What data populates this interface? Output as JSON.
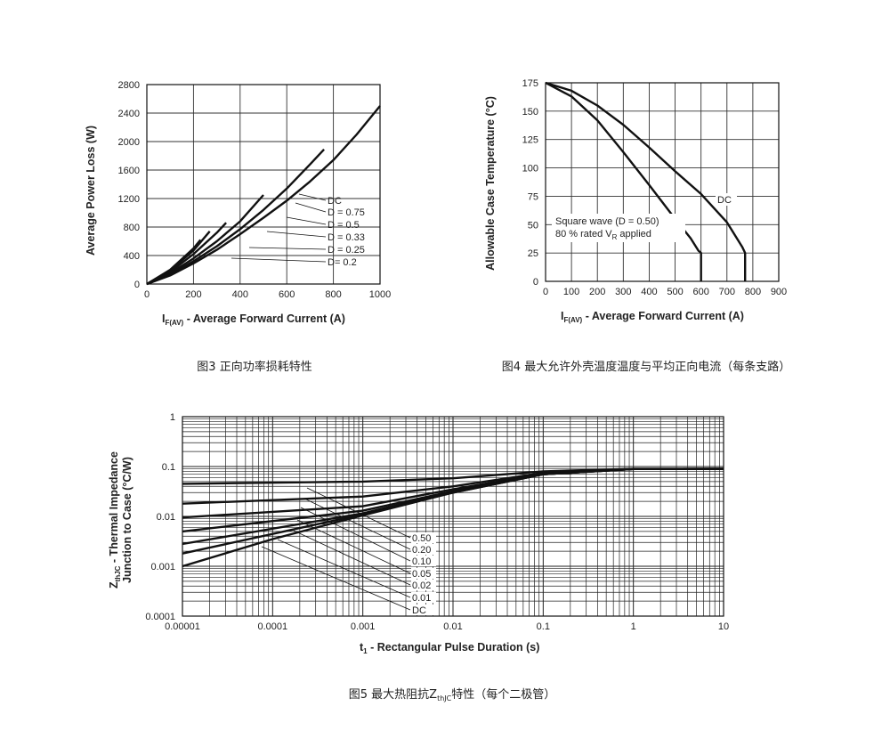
{
  "chart_data": [
    {
      "type": "line",
      "title": "",
      "caption": "图3 正向功率损耗特性",
      "ylabel": "Average Power Loss (W)",
      "xlabel_main": "I",
      "xlabel_sub": "F(AV)",
      "xlabel_rest": " - Average Forward Current (A)",
      "xlim": [
        0,
        1000
      ],
      "ylim": [
        0,
        2800
      ],
      "xticks": [
        0,
        200,
        400,
        600,
        800,
        1000
      ],
      "yticks": [
        0,
        400,
        800,
        1200,
        1600,
        2000,
        2400,
        2800
      ],
      "grid": true,
      "series": [
        {
          "name": "DC",
          "x": [
            0,
            100,
            200,
            300,
            400,
            500,
            600,
            700,
            800,
            900,
            1000
          ],
          "y": [
            0,
            120,
            290,
            480,
            700,
            930,
            1170,
            1440,
            1740,
            2100,
            2500
          ]
        },
        {
          "name": "D = 0.75",
          "x": [
            0,
            100,
            200,
            300,
            400,
            500,
            600,
            700,
            760
          ],
          "y": [
            0,
            130,
            320,
            530,
            770,
            1040,
            1340,
            1680,
            1890
          ]
        },
        {
          "name": "D = 0.5",
          "x": [
            0,
            100,
            200,
            300,
            400,
            500
          ],
          "y": [
            0,
            150,
            360,
            600,
            880,
            1250
          ]
        },
        {
          "name": "D = 0.33",
          "x": [
            0,
            100,
            200,
            300,
            340
          ],
          "y": [
            0,
            170,
            420,
            720,
            860
          ]
        },
        {
          "name": "D = 0.25",
          "x": [
            0,
            100,
            200,
            270
          ],
          "y": [
            0,
            190,
            470,
            740
          ]
        },
        {
          "name": "D= 0.2",
          "x": [
            0,
            100,
            200,
            230
          ],
          "y": [
            0,
            200,
            500,
            620
          ]
        }
      ]
    },
    {
      "type": "line",
      "title": "",
      "caption": "图4 最大允许外壳温度温度与平均正向电流（每条支路）",
      "ylabel": "Allowable Case Temperature (°C)",
      "xlabel_main": "I",
      "xlabel_sub": "F(AV)",
      "xlabel_rest": " - Average Forward Current (A)",
      "xlim": [
        0,
        900
      ],
      "ylim": [
        0,
        175
      ],
      "xticks": [
        0,
        100,
        200,
        300,
        400,
        500,
        600,
        700,
        800,
        900
      ],
      "yticks": [
        0,
        25,
        50,
        75,
        100,
        125,
        150,
        175
      ],
      "grid": true,
      "annotation_line1": "Square wave (D = 0.50)",
      "annotation_line2_pre": "80 % rated V",
      "annotation_line2_sub": "R",
      "annotation_line2_post": " applied",
      "series": [
        {
          "name": "DC",
          "x": [
            0,
            100,
            200,
            300,
            400,
            500,
            600,
            700,
            760,
            770,
            770
          ],
          "y": [
            175,
            168,
            155,
            138,
            118,
            97,
            77,
            52,
            30,
            25,
            0
          ]
        },
        {
          "name": "Square wave (D = 0.50)",
          "x": [
            0,
            100,
            200,
            300,
            400,
            500,
            560,
            590,
            600,
            600
          ],
          "y": [
            175,
            163,
            142,
            114,
            85,
            55,
            38,
            27,
            25,
            0
          ]
        }
      ]
    },
    {
      "type": "line",
      "title": "",
      "caption_pre": "图5 最大热阻抗Z",
      "caption_sub": "thJC",
      "caption_post": "特性（每个二极管）",
      "ylabel_main": "Z",
      "ylabel_sub": "thJC",
      "ylabel_line1_rest": " - Thermal Impedance",
      "ylabel_line2": "Junction to Case (°C/W)",
      "xlabel_main": "t",
      "xlabel_sub": "1",
      "xlabel_rest": " - Rectangular Pulse Duration (s)",
      "x_scale": "log",
      "y_scale": "log",
      "xlim": [
        1e-05,
        10
      ],
      "ylim": [
        0.0001,
        1
      ],
      "xticks": [
        "0.00001",
        "0.0001",
        "0.001",
        "0.01",
        "0.1",
        "1",
        "10"
      ],
      "yticks": [
        "1",
        "0.1",
        "0.01",
        "0.001",
        "0.0001"
      ],
      "grid": true,
      "series": [
        {
          "name": "0.50",
          "x": [
            1e-05,
            0.001,
            0.01,
            0.1,
            1,
            10
          ],
          "y": [
            0.045,
            0.05,
            0.058,
            0.08,
            0.09,
            0.09
          ]
        },
        {
          "name": "0.20",
          "x": [
            1e-05,
            0.001,
            0.01,
            0.1,
            1,
            10
          ],
          "y": [
            0.018,
            0.025,
            0.04,
            0.075,
            0.09,
            0.09
          ]
        },
        {
          "name": "0.10",
          "x": [
            1e-05,
            0.001,
            0.01,
            0.1,
            1,
            10
          ],
          "y": [
            0.0095,
            0.016,
            0.035,
            0.072,
            0.089,
            0.09
          ]
        },
        {
          "name": "0.05",
          "x": [
            1e-05,
            0.001,
            0.01,
            0.1,
            1,
            10
          ],
          "y": [
            0.005,
            0.013,
            0.032,
            0.07,
            0.089,
            0.09
          ]
        },
        {
          "name": "0.02",
          "x": [
            1e-05,
            0.001,
            0.01,
            0.1,
            1,
            10
          ],
          "y": [
            0.0028,
            0.0115,
            0.031,
            0.07,
            0.089,
            0.09
          ]
        },
        {
          "name": "0.01",
          "x": [
            1e-05,
            0.001,
            0.01,
            0.1,
            1,
            10
          ],
          "y": [
            0.0018,
            0.011,
            0.03,
            0.07,
            0.089,
            0.09
          ]
        },
        {
          "name": "DC",
          "x": [
            1e-05,
            0.0001,
            0.001,
            0.01,
            0.1,
            1,
            10
          ],
          "y": [
            0.001,
            0.0035,
            0.0105,
            0.03,
            0.07,
            0.089,
            0.09
          ]
        }
      ]
    }
  ]
}
